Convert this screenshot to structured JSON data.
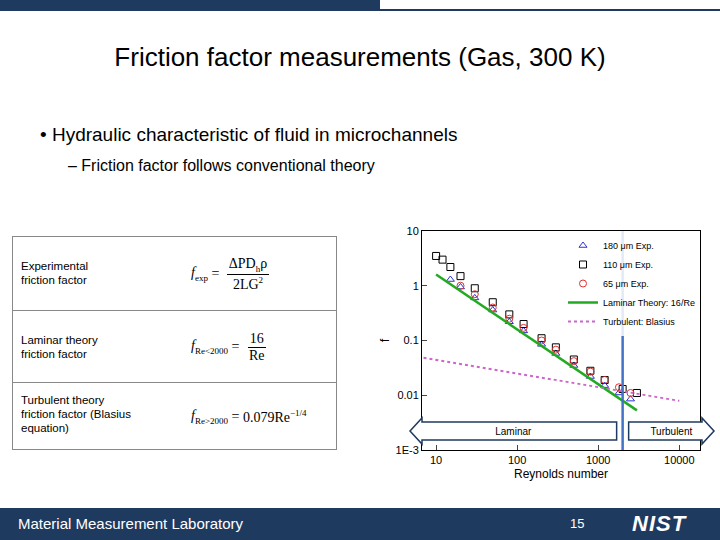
{
  "slide": {
    "title": "Friction factor measurements (Gas, 300 K)",
    "bullets": [
      {
        "bullet": "•",
        "text": "Hydraulic characteristic of fluid in microchannels",
        "level": 1
      },
      {
        "bullet": "–",
        "text": "Friction factor follows conventional theory",
        "level": 2
      }
    ],
    "table": [
      {
        "label": "Experimental friction factor",
        "symbol": "f",
        "sub": "exp",
        "equals": "=",
        "numerator": "ΔPD",
        "numerator_sub": "h",
        "numerator_tail": "ρ",
        "denominator": "2LG",
        "denominator_sup": "2"
      },
      {
        "label": "Laminar theory friction factor",
        "symbol": "f",
        "sub": "Re<2000",
        "equals": "=",
        "numerator": "16",
        "denominator": "Re"
      },
      {
        "label": "Turbulent theory friction factor (Blasius equation)",
        "symbol": "f",
        "sub": "Re>2000",
        "equals": "=",
        "expression": "0.079Re",
        "exponent": "−1/4"
      }
    ],
    "footer": "Material Measurement Laboratory",
    "page": "15",
    "logo": "NIST"
  },
  "chart_data": {
    "type": "scatter",
    "x_label": "Reynolds number",
    "y_label": "f",
    "log": true,
    "xlim": [
      6.7,
      18000
    ],
    "xticks": [
      10,
      100,
      1000,
      10000
    ],
    "ylim": [
      0.001,
      10
    ],
    "yticks": [
      {
        "value": 0.001,
        "label": "1E-3"
      },
      0.01,
      0.1,
      1,
      10
    ],
    "grid": false,
    "legend": "upper right",
    "transition": 2000,
    "annotations": [
      "Laminar",
      "Turbulent"
    ],
    "series": [
      {
        "name": "180 μm Exp.",
        "type": "scatter",
        "marker": "triangle-up-open",
        "color": "#3333cc",
        "x": [
          15,
          20,
          30,
          50,
          80,
          120,
          200,
          300,
          500,
          800,
          1200,
          1800,
          2500
        ],
        "values": [
          1.3,
          0.95,
          0.6,
          0.36,
          0.22,
          0.15,
          0.085,
          0.058,
          0.035,
          0.022,
          0.015,
          0.011,
          0.0085
        ]
      },
      {
        "name": "110 μm Exp.",
        "type": "scatter",
        "marker": "square-open",
        "color": "#000000",
        "x": [
          10,
          12,
          15,
          20,
          30,
          50,
          80,
          120,
          200,
          300,
          500,
          800,
          1200,
          2000,
          3000
        ],
        "values": [
          3.5,
          3.0,
          2.2,
          1.5,
          0.9,
          0.5,
          0.3,
          0.2,
          0.11,
          0.075,
          0.045,
          0.028,
          0.019,
          0.013,
          0.011
        ]
      },
      {
        "name": "65 μm Exp.",
        "type": "scatter",
        "marker": "circle-open",
        "color": "#e03030",
        "x": [
          20,
          30,
          50,
          80,
          120,
          200,
          300,
          500,
          800,
          1200,
          1800,
          2500
        ],
        "values": [
          1.0,
          0.7,
          0.4,
          0.25,
          0.17,
          0.1,
          0.068,
          0.042,
          0.027,
          0.019,
          0.014,
          0.011
        ]
      },
      {
        "name": "Laminar Theory: 16/Re",
        "type": "line",
        "line_style": "solid",
        "color": "#22aa22",
        "x": [
          10,
          100,
          1000,
          3000
        ],
        "values": [
          1.6,
          0.16,
          0.016,
          0.0053
        ]
      },
      {
        "name": "Turbulent: Blasius",
        "type": "line",
        "line_style": "dot",
        "color": "#cc66cc",
        "x": [
          7,
          10,
          100,
          1000,
          10000
        ],
        "values": [
          0.0486,
          0.0444,
          0.025,
          0.014,
          0.0079
        ]
      }
    ]
  }
}
